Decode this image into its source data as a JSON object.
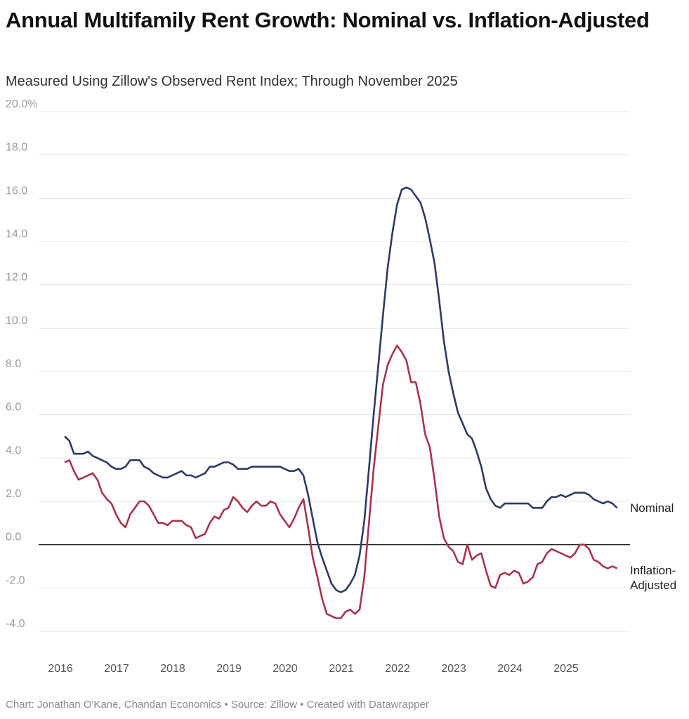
{
  "title": "Annual Multifamily Rent Growth: Nominal vs. Inflation-Adjusted",
  "subtitle": "Measured Using Zillow's Observed Rent Index; Through November 2025",
  "footer": "Chart: Jonathan O'Kane, Chandan Economics • Source: Zillow • Created with Datawrapper",
  "chart_data": {
    "type": "line",
    "ylim": [
      -4,
      20
    ],
    "yticks": [
      "20.0%",
      "18.0",
      "16.0",
      "14.0",
      "12.0",
      "10.0",
      "8.0",
      "6.0",
      "4.0",
      "2.0",
      "0.0",
      "-2.0",
      "-4.0"
    ],
    "xticks": [
      "2016",
      "2017",
      "2018",
      "2019",
      "2020",
      "2021",
      "2022",
      "2023",
      "2024",
      "2025"
    ],
    "x_start": "2016-01",
    "x_end": "2025-11",
    "frequency": "monthly",
    "grid": true,
    "legend": "inline-right",
    "series": [
      {
        "name": "Nominal",
        "color": "#2d3a64",
        "values": [
          5.0,
          4.8,
          4.2,
          4.2,
          4.2,
          4.3,
          4.1,
          4.0,
          3.9,
          3.8,
          3.6,
          3.5,
          3.5,
          3.6,
          3.9,
          3.9,
          3.9,
          3.6,
          3.5,
          3.3,
          3.2,
          3.1,
          3.1,
          3.2,
          3.3,
          3.4,
          3.2,
          3.2,
          3.1,
          3.2,
          3.3,
          3.6,
          3.6,
          3.7,
          3.8,
          3.8,
          3.7,
          3.5,
          3.5,
          3.5,
          3.6,
          3.6,
          3.6,
          3.6,
          3.6,
          3.6,
          3.6,
          3.5,
          3.4,
          3.4,
          3.5,
          3.2,
          2.3,
          1.2,
          0.1,
          -0.6,
          -1.2,
          -1.8,
          -2.1,
          -2.2,
          -2.1,
          -1.8,
          -1.4,
          -0.5,
          1.1,
          3.5,
          6.0,
          8.3,
          10.6,
          12.8,
          14.4,
          15.7,
          16.4,
          16.5,
          16.4,
          16.1,
          15.8,
          15.1,
          14.1,
          13.0,
          11.3,
          9.4,
          8.0,
          7.0,
          6.1,
          5.6,
          5.1,
          4.9,
          4.3,
          3.6,
          2.6,
          2.1,
          1.8,
          1.7,
          1.9,
          1.9,
          1.9,
          1.9,
          1.9,
          1.9,
          1.7,
          1.7,
          1.7,
          2.0,
          2.2,
          2.2,
          2.3,
          2.2,
          2.3,
          2.4,
          2.4,
          2.4,
          2.3,
          2.1,
          2.0,
          1.9,
          2.0,
          1.9,
          1.7
        ]
      },
      {
        "name": "Inflation-Adjusted",
        "color": "#a8334a",
        "values": [
          3.8,
          3.9,
          3.4,
          3.0,
          3.1,
          3.2,
          3.3,
          3.0,
          2.4,
          2.1,
          1.9,
          1.4,
          1.0,
          0.8,
          1.4,
          1.7,
          2.0,
          2.0,
          1.8,
          1.4,
          1.0,
          1.0,
          0.9,
          1.1,
          1.1,
          1.1,
          0.9,
          0.8,
          0.3,
          0.4,
          0.5,
          1.0,
          1.3,
          1.2,
          1.6,
          1.7,
          2.2,
          2.0,
          1.7,
          1.5,
          1.8,
          2.0,
          1.8,
          1.8,
          2.0,
          1.9,
          1.4,
          1.1,
          0.8,
          1.2,
          1.7,
          2.1,
          0.8,
          -0.6,
          -1.5,
          -2.5,
          -3.2,
          -3.3,
          -3.4,
          -3.4,
          -3.1,
          -3.0,
          -3.2,
          -3.0,
          -1.5,
          1.0,
          3.5,
          5.5,
          7.4,
          8.3,
          8.8,
          9.2,
          8.9,
          8.5,
          7.5,
          7.5,
          6.5,
          5.1,
          4.5,
          3.0,
          1.3,
          0.3,
          -0.1,
          -0.3,
          -0.8,
          -0.9,
          0.0,
          -0.7,
          -0.5,
          -0.4,
          -1.2,
          -1.9,
          -2.0,
          -1.4,
          -1.3,
          -1.4,
          -1.2,
          -1.3,
          -1.8,
          -1.7,
          -1.5,
          -0.9,
          -0.8,
          -0.4,
          -0.2,
          -0.3,
          -0.4,
          -0.5,
          -0.6,
          -0.4,
          0.0,
          0.0,
          -0.2,
          -0.7,
          -0.8,
          -1.0,
          -1.1,
          -1.0,
          -1.1
        ]
      }
    ]
  },
  "labels": {
    "nominal": "Nominal",
    "inflation_1": "Inflation-",
    "inflation_2": "Adjusted"
  }
}
